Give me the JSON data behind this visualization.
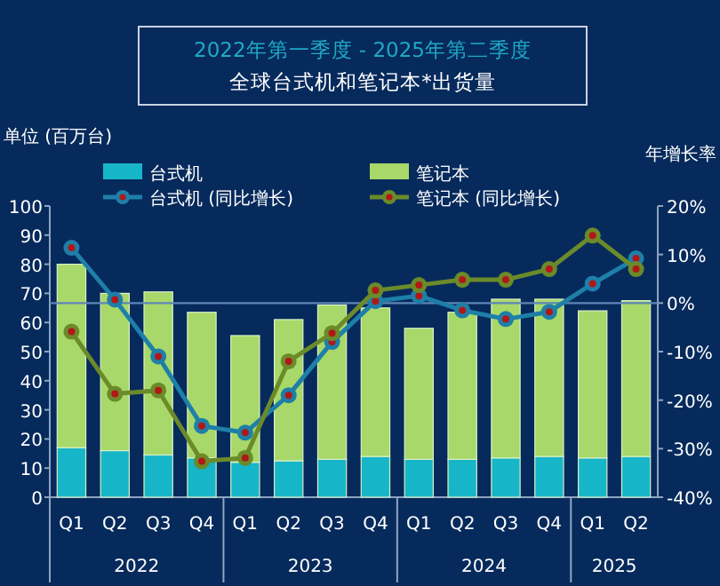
{
  "chart_data": {
    "type": "bar",
    "stacked": true,
    "title": "2022年第一季度 - 2025年第二季度",
    "subtitle": "全球台式机和笔记本*出货量",
    "ylabel": "单位 (百万台)",
    "y2label": "年增长率",
    "categories": [
      "Q1",
      "Q2",
      "Q3",
      "Q4",
      "Q1",
      "Q2",
      "Q3",
      "Q4",
      "Q1",
      "Q2",
      "Q3",
      "Q4",
      "Q1",
      "Q2"
    ],
    "annotations": [
      "2022",
      "2023",
      "2024",
      "2025"
    ],
    "series": [
      {
        "name": "台式机",
        "color": "#17b5c8",
        "values": [
          17,
          16,
          14.5,
          13.5,
          12,
          12.5,
          13,
          14,
          13,
          13,
          13.5,
          14,
          13.5,
          14
        ]
      },
      {
        "name": "笔记本",
        "color": "#a8d86a",
        "values": [
          63,
          54,
          56,
          50,
          43.5,
          48.5,
          53,
          51,
          45,
          50.5,
          54.5,
          54,
          50.5,
          53.5
        ]
      },
      {
        "name": "台式机 (同比增长)",
        "type": "line",
        "axis": "y2",
        "color": "#1e7fa8",
        "values": [
          11.4,
          0.7,
          -11,
          -25.3,
          -26.7,
          -19,
          -8,
          0.4,
          1.5,
          -1.5,
          -3.3,
          -1.8,
          4,
          9.2
        ]
      },
      {
        "name": "笔记本 (同比增长)",
        "type": "line",
        "axis": "y2",
        "color": "#6b8a2a",
        "values": [
          -5.9,
          -18.7,
          -18,
          -32.6,
          -31.9,
          -12,
          -6.2,
          2.6,
          3.7,
          4.8,
          4.8,
          7,
          13.9,
          7
        ]
      }
    ],
    "ylim": [
      0,
      100
    ],
    "yticks": [
      0,
      10,
      20,
      30,
      40,
      50,
      60,
      70,
      80,
      90,
      100
    ],
    "y2lim": [
      -40,
      20
    ],
    "y2ticks": [
      {
        "value": -40,
        "label": "-40%"
      },
      {
        "value": -30,
        "label": "-30%"
      },
      {
        "value": -20,
        "label": "-20%"
      },
      {
        "value": -10,
        "label": "-10%"
      },
      {
        "value": 0,
        "label": "0%"
      },
      {
        "value": 10,
        "label": "10%"
      },
      {
        "value": 20,
        "label": "20%"
      }
    ],
    "ref_lines": [
      {
        "axis": "y2",
        "value": 0,
        "color": "#5f86b8"
      }
    ],
    "marker": "circle",
    "legend": "top",
    "grid": false
  }
}
